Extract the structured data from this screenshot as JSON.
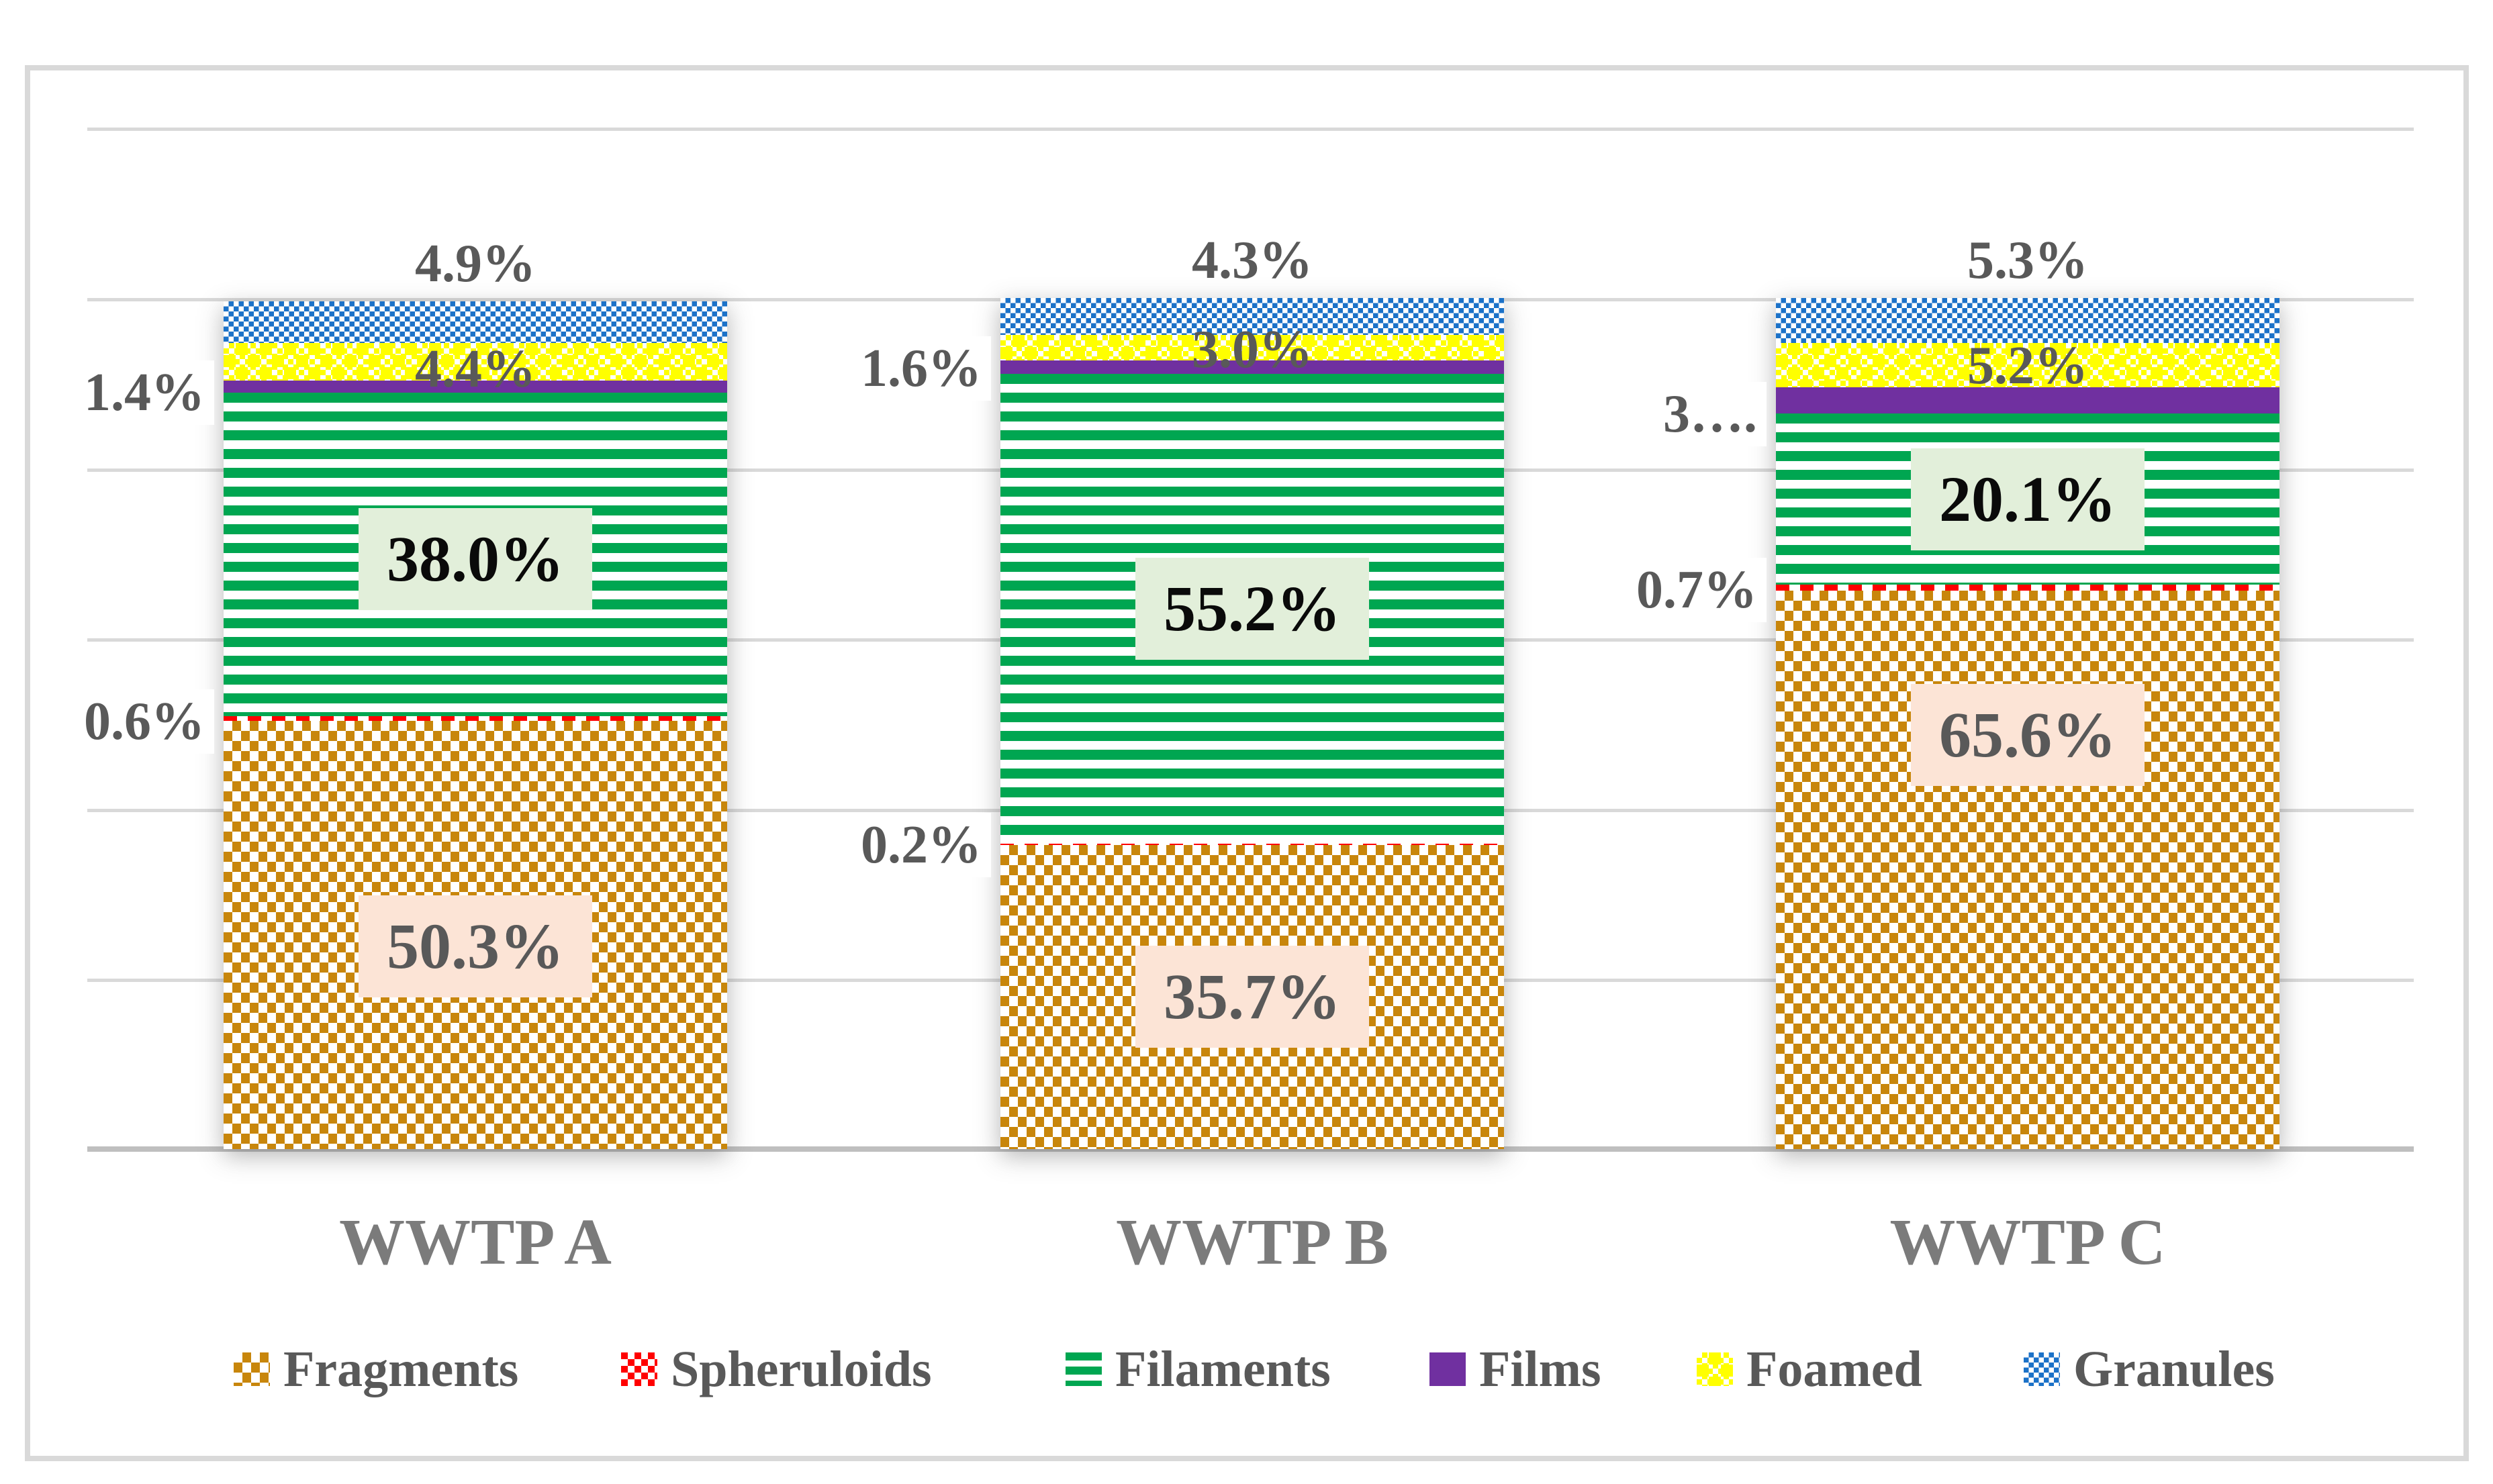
{
  "chart_data": {
    "type": "bar",
    "stacked": true,
    "orientation": "vertical",
    "unit": "%",
    "title": "",
    "xlabel": "",
    "ylabel": "",
    "ylim": [
      0,
      120
    ],
    "gridline_step_pct": 20,
    "grid": true,
    "legend_position": "bottom",
    "categories": [
      "WWTP A",
      "WWTP B",
      "WWTP C"
    ],
    "series": [
      {
        "name": "Fragments",
        "pattern": "fragments",
        "color": "#C8860B",
        "values": [
          50.3,
          35.7,
          65.6
        ],
        "labels": [
          "50.3%",
          "35.7%",
          "65.6%"
        ]
      },
      {
        "name": "Spheruloids",
        "pattern": "spheruloids",
        "color": "#FF0000",
        "values": [
          0.6,
          0.2,
          0.7
        ],
        "labels": [
          "0.6%",
          "0.2%",
          "0.7%"
        ]
      },
      {
        "name": "Filaments",
        "pattern": "filaments",
        "color": "#00A651",
        "values": [
          38.0,
          55.2,
          20.1
        ],
        "labels": [
          "38.0%",
          "55.2%",
          "20.1%"
        ]
      },
      {
        "name": "Films",
        "pattern": "films",
        "color": "#7030A0",
        "values": [
          1.4,
          1.6,
          3.1
        ],
        "labels": [
          "1.4%",
          "1.6%",
          "3…."
        ]
      },
      {
        "name": "Foamed",
        "pattern": "foamed",
        "color": "#FFFF00",
        "values": [
          4.4,
          3.0,
          5.2
        ],
        "labels": [
          "4.4%",
          "3.0%",
          "5.2%"
        ]
      },
      {
        "name": "Granules",
        "pattern": "granules",
        "color": "#1C72C8",
        "values": [
          4.9,
          4.3,
          5.3
        ],
        "labels": [
          "4.9%",
          "4.3%",
          "5.3%"
        ]
      }
    ]
  },
  "legend": {
    "items": [
      "Fragments",
      "Spheruloids",
      "Filaments",
      "Films",
      "Foamed",
      "Granules"
    ]
  },
  "style_colors": {
    "label_text": "#595959",
    "filaments_label_bg": "#E2EFDA",
    "filaments_label_text": "#0A0A0A",
    "fragments_label_bg": "#FCE4D6",
    "gridline": "#D9D9D9",
    "axis_line": "#BFBFBF",
    "category_text": "#7B7B7B",
    "frame_border": "#D9D9D9"
  }
}
